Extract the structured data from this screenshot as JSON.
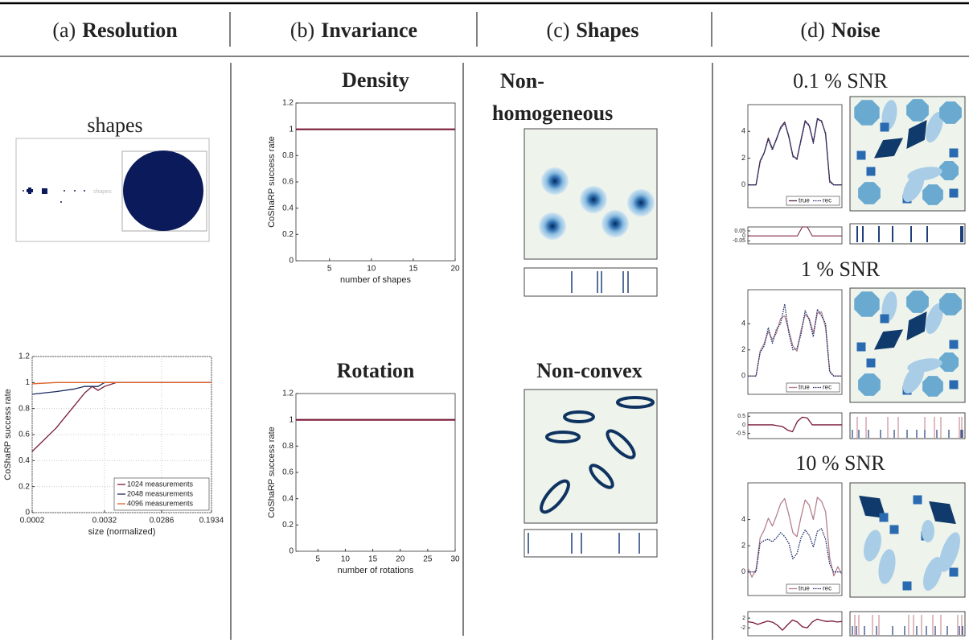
{
  "columns": [
    {
      "label": "(a)",
      "name": "Resolution"
    },
    {
      "label": "(b)",
      "name": "Invariance"
    },
    {
      "label": "(c)",
      "name": "Shapes"
    },
    {
      "label": "(d)",
      "name": "Noise"
    }
  ],
  "labels": {
    "shapes_title": "shapes",
    "shapes_inset": "shapes",
    "nonhomogeneous": [
      "Non-",
      "homogeneous"
    ],
    "nonconvex": "Non-convex"
  },
  "chart_data": [
    {
      "type": "line",
      "xlabel": "size (normalized)",
      "ylabel": "CoShaRP success rate",
      "xlog": true,
      "grid": true,
      "legend": "lower right",
      "x": [
        0.0002,
        0.0005,
        0.001,
        0.0015,
        0.002,
        0.0025,
        0.0032,
        0.005,
        0.0286,
        0.1934
      ],
      "xlim": [
        0.0002,
        0.1934
      ],
      "xticks": [
        0.0002,
        0.0032,
        0.0286,
        0.1934
      ],
      "ylim": [
        0,
        1.2
      ],
      "yticks": [
        0,
        0.2,
        0.4,
        0.6,
        0.8,
        1,
        1.2
      ],
      "series": [
        {
          "name": "1024 measurements",
          "color": "#7a1a36",
          "values": [
            0.47,
            0.65,
            0.82,
            0.92,
            0.97,
            0.94,
            0.97,
            1,
            1,
            1
          ]
        },
        {
          "name": "2048 measurements",
          "color": "#1d2a5e",
          "values": [
            0.91,
            0.93,
            0.95,
            0.97,
            0.97,
            0.97,
            1,
            1,
            1,
            1
          ]
        },
        {
          "name": "4096 measurements",
          "color": "#e0642a",
          "values": [
            0.99,
            1,
            1,
            1,
            1,
            1,
            1,
            1,
            1,
            1
          ]
        }
      ]
    },
    {
      "type": "line",
      "title": "Density",
      "xlabel": "number of shapes",
      "ylabel": "CoShaRP success rate",
      "x": [
        1,
        2,
        3,
        4,
        5,
        6,
        7,
        8,
        9,
        10,
        11,
        12,
        13,
        14,
        15,
        16,
        17,
        18,
        19,
        20
      ],
      "xlim": [
        1,
        20
      ],
      "xticks": [
        5,
        10,
        15,
        20
      ],
      "ylim": [
        0,
        1.2
      ],
      "yticks": [
        0,
        0.2,
        0.4,
        0.6,
        0.8,
        1,
        1.2
      ],
      "series": [
        {
          "color": "#7a1a36",
          "values": [
            1,
            1,
            1,
            1,
            1,
            1,
            1,
            1,
            1,
            1,
            1,
            1,
            1,
            1,
            1,
            1,
            1,
            1,
            1,
            1
          ]
        }
      ]
    },
    {
      "type": "line",
      "title": "Rotation",
      "xlabel": "number of rotations",
      "ylabel": "CoShaRP success rate",
      "x": [
        1,
        2,
        3,
        4,
        5,
        6,
        7,
        8,
        9,
        10,
        11,
        12,
        13,
        14,
        15,
        16,
        17,
        18,
        19,
        20,
        21,
        22,
        23,
        24,
        25,
        26,
        27,
        28,
        29,
        30
      ],
      "xlim": [
        1,
        30
      ],
      "xticks": [
        5,
        10,
        15,
        20,
        25,
        30
      ],
      "ylim": [
        0,
        1.2
      ],
      "yticks": [
        0,
        0.2,
        0.4,
        0.6,
        0.8,
        1,
        1.2
      ],
      "series": [
        {
          "color": "#7a1a36",
          "values": [
            1,
            1,
            1,
            1,
            1,
            1,
            1,
            1,
            1,
            1,
            1,
            1,
            1,
            1,
            1,
            1,
            1,
            1,
            1,
            1,
            1,
            1,
            1,
            1,
            1,
            1,
            1,
            1,
            1,
            1
          ]
        }
      ]
    },
    {
      "type": "line",
      "title": "0.1 % SNR",
      "legend": "lower right",
      "x": [
        0,
        1,
        2,
        3,
        4,
        5,
        6,
        7,
        8,
        9,
        10,
        11,
        12,
        13,
        14,
        15,
        16,
        17,
        18,
        19,
        20,
        21,
        22,
        23
      ],
      "ylim": [
        -1.7,
        6
      ],
      "yticks": [
        0,
        2,
        4
      ],
      "series": [
        {
          "name": "true",
          "color": "#5a2848",
          "style": "solid",
          "values": [
            0,
            0,
            0,
            1.8,
            2.4,
            3.5,
            2.7,
            3.4,
            4.3,
            4.7,
            3.6,
            2.2,
            1.9,
            3.4,
            4.8,
            4.4,
            3.2,
            4.9,
            4.8,
            3.8,
            0.3,
            0,
            0,
            0
          ]
        },
        {
          "name": "rec",
          "color": "#1f2f6b",
          "style": "dotted",
          "values": [
            0,
            0,
            0,
            1.7,
            2.4,
            3.4,
            2.6,
            3.5,
            4.2,
            4.6,
            3.7,
            2.1,
            2,
            3.3,
            4.7,
            4.5,
            3.1,
            5,
            4.7,
            3.9,
            0.2,
            0,
            0,
            0
          ]
        }
      ]
    },
    {
      "type": "line",
      "title": "1 % SNR",
      "legend": "lower right",
      "x": [
        0,
        1,
        2,
        3,
        4,
        5,
        6,
        7,
        8,
        9,
        10,
        11,
        12,
        13,
        14,
        15,
        16,
        17,
        18,
        19,
        20,
        21,
        22,
        23
      ],
      "ylim": [
        -1.4,
        6.6
      ],
      "yticks": [
        0,
        2,
        4
      ],
      "series": [
        {
          "name": "true",
          "color": "#b5808e",
          "style": "solid",
          "values": [
            0,
            0,
            0,
            1.9,
            2.5,
            3.4,
            2.8,
            3.3,
            4.4,
            4.6,
            3.5,
            2.3,
            1.9,
            3.5,
            4.7,
            4.4,
            3.3,
            4.8,
            4.9,
            3.7,
            0.4,
            0,
            0,
            0
          ]
        },
        {
          "name": "rec",
          "color": "#1f2f6b",
          "style": "dotted",
          "values": [
            0,
            0,
            0,
            1.8,
            2.3,
            3.7,
            2.5,
            3.6,
            4,
            5.5,
            3.3,
            2,
            2.1,
            3.2,
            5,
            4.3,
            3,
            5.1,
            4.6,
            4,
            0.3,
            0,
            0,
            0
          ]
        }
      ]
    },
    {
      "type": "line",
      "title": "10 % SNR",
      "legend": "lower right",
      "x": [
        0,
        1,
        2,
        3,
        4,
        5,
        6,
        7,
        8,
        9,
        10,
        11,
        12,
        13,
        14,
        15,
        16,
        17,
        18,
        19,
        20,
        21,
        22,
        23
      ],
      "ylim": [
        -1.8,
        6.8
      ],
      "yticks": [
        0,
        2,
        4
      ],
      "series": [
        {
          "name": "true",
          "color": "#b5808e",
          "style": "solid",
          "values": [
            0.3,
            -0.4,
            0.2,
            2.6,
            3.2,
            4.1,
            3.5,
            4.3,
            5.2,
            5.6,
            4.4,
            3,
            2.7,
            4.2,
            5.5,
            5.1,
            4,
            5.7,
            5.4,
            4.6,
            1.1,
            -0.3,
            0.4,
            -0.2
          ]
        },
        {
          "name": "rec",
          "color": "#1f2f6b",
          "style": "dotted",
          "values": [
            0,
            0,
            0,
            2.2,
            2.4,
            2.5,
            2.3,
            2.6,
            3,
            2.7,
            2.2,
            1,
            1.4,
            2.6,
            3.2,
            2.8,
            1.9,
            3.1,
            3.3,
            2.5,
            0.6,
            0,
            0,
            0
          ]
        }
      ]
    },
    {
      "type": "line",
      "x": [
        0,
        1,
        2,
        3,
        4,
        5,
        6,
        7,
        8,
        9,
        10,
        11,
        12,
        13,
        14,
        15,
        16,
        17,
        18,
        19
      ],
      "ylim": [
        -0.08,
        0.09
      ],
      "yticks": [
        0.05,
        0,
        -0.05
      ],
      "color": "#7a1a36",
      "values": [
        0,
        0,
        0,
        0,
        0,
        0,
        0,
        0,
        0,
        0,
        0,
        0.09,
        0.09,
        0,
        0,
        0,
        0,
        0,
        0,
        0
      ]
    },
    {
      "type": "line",
      "x": [
        0,
        1,
        2,
        3,
        4,
        5,
        6,
        7,
        8,
        9,
        10,
        11,
        12,
        13,
        14,
        15,
        16,
        17,
        18,
        19
      ],
      "ylim": [
        -0.8,
        0.7
      ],
      "yticks": [
        0.5,
        0,
        -0.5
      ],
      "color": "#7a1a36",
      "values": [
        0,
        0,
        0,
        0,
        0,
        0,
        -0.05,
        -0.1,
        -0.3,
        -0.4,
        0.2,
        0.45,
        0.4,
        0,
        0,
        0,
        0,
        0,
        0,
        0
      ]
    },
    {
      "type": "line",
      "x": [
        0,
        1,
        2,
        3,
        4,
        5,
        6,
        7,
        8,
        9,
        10,
        11,
        12,
        13,
        14,
        15,
        16,
        17,
        18,
        19
      ],
      "ylim": [
        -5.3,
        4.7
      ],
      "yticks": [
        2,
        -2
      ],
      "color": "#7a1a36",
      "values": [
        0.5,
        0.2,
        -0.6,
        0.1,
        0.8,
        0.3,
        -1,
        -3,
        -0.8,
        1.2,
        0.4,
        -1.6,
        -2,
        0.4,
        1.6,
        1,
        0.6,
        0.8,
        0.4,
        0.6
      ]
    }
  ]
}
